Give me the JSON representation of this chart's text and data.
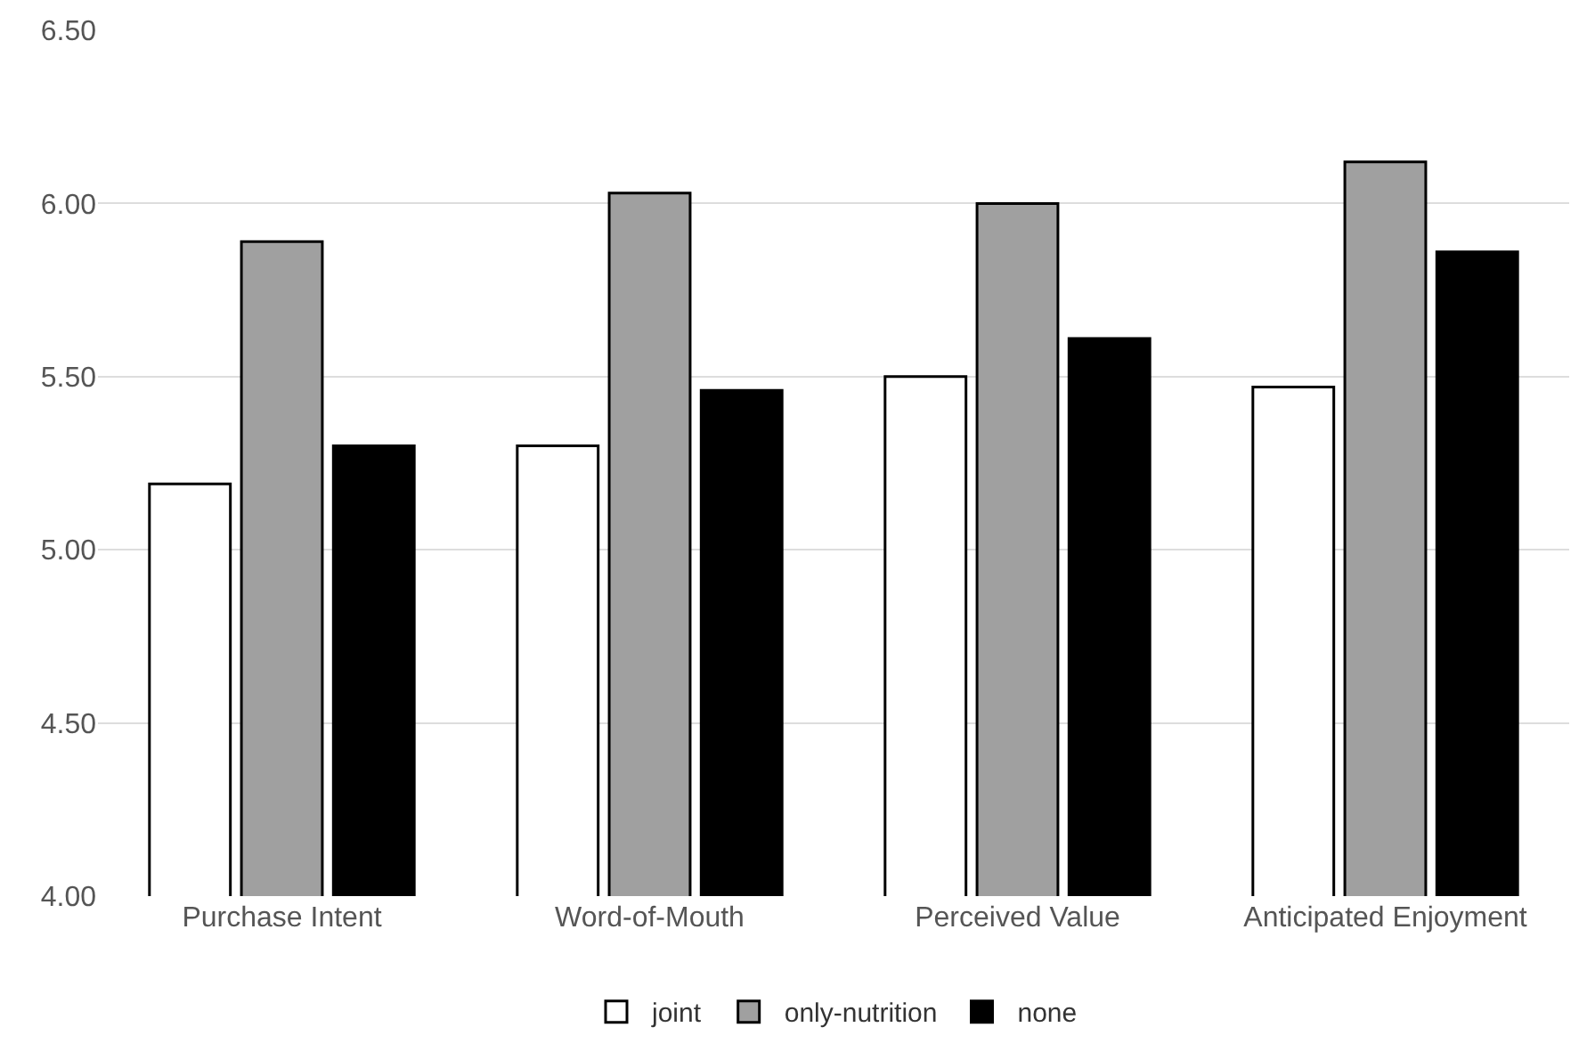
{
  "chart_data": {
    "type": "bar",
    "categories": [
      "Purchase Intent",
      "Word-of-Mouth",
      "Perceived Value",
      "Anticipated Enjoyment"
    ],
    "series": [
      {
        "name": "joint",
        "color": "#ffffff",
        "values": [
          5.19,
          5.3,
          5.5,
          5.47
        ]
      },
      {
        "name": "only-nutrition",
        "color": "#a0a0a0",
        "values": [
          5.89,
          6.03,
          6.0,
          6.12
        ]
      },
      {
        "name": "none",
        "color": "#000000",
        "values": [
          5.3,
          5.46,
          5.61,
          5.86
        ]
      }
    ],
    "ylim": [
      4,
      6.5
    ],
    "yticks": [
      {
        "value": 4,
        "label": "4.00"
      },
      {
        "value": 4.5,
        "label": "4.50"
      },
      {
        "value": 5,
        "label": "5.00"
      },
      {
        "value": 5.5,
        "label": "5.50"
      },
      {
        "value": 6,
        "label": "6.00"
      },
      {
        "value": 6.5,
        "label": "6.50"
      }
    ],
    "grid": "y",
    "legend": "bottom"
  }
}
